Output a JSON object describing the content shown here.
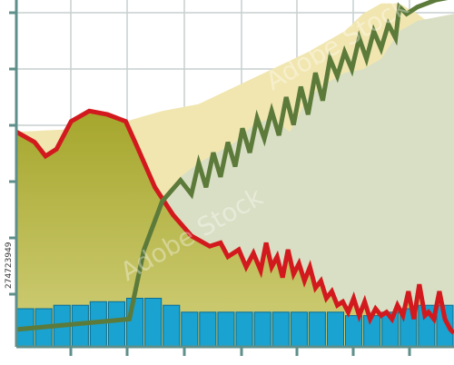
{
  "stock_id": "274723949",
  "watermark_text": "Adobe Stock",
  "colors": {
    "grid": "#5e8f8a",
    "olive_fill": "#a5a62c",
    "olive_fill_light": "#d1cf7a",
    "beige_area": "#f1e6b0",
    "sage_area": "#d9dfc4",
    "sky_area": "#cfe6f0",
    "red_line": "#d21a1e",
    "green_line": "#5c7a3a",
    "bar_fill": "#1aa2d0",
    "bar_stroke": "#0b6d93"
  },
  "chart_data": {
    "type": "area",
    "title": "",
    "xlabel": "",
    "ylabel": "",
    "xlim": [
      0,
      24
    ],
    "ylim": [
      0,
      10
    ],
    "grid": true,
    "legend": "none",
    "series": [
      {
        "kind": "area",
        "color": "#f1e6b0",
        "x": [
          0,
          4,
          6,
          8,
          10,
          12,
          14,
          16,
          18,
          19,
          20,
          21,
          22,
          23,
          24
        ],
        "y": [
          6.2,
          6.3,
          6.5,
          6.8,
          7.0,
          7.5,
          8.0,
          8.5,
          9.1,
          9.6,
          9.9,
          9.9,
          9.6,
          9.2,
          8.8
        ]
      },
      {
        "kind": "area",
        "color": "#cfe6f0",
        "x": [
          21,
          22,
          23,
          24
        ],
        "y": [
          9.0,
          9.3,
          9.4,
          9.5
        ]
      },
      {
        "kind": "area",
        "color": "#d9dfc4",
        "x": [
          6.2,
          7,
          8,
          9,
          10,
          11,
          12,
          13,
          14,
          15,
          16,
          17,
          18,
          19,
          20,
          21,
          22,
          23,
          24
        ],
        "y": [
          0.7,
          2.8,
          4.2,
          4.9,
          5.3,
          5.6,
          5.9,
          6.4,
          6.6,
          6.2,
          7.2,
          7.6,
          7.9,
          8.0,
          8.3,
          9.1,
          9.4,
          9.5,
          9.6
        ]
      },
      {
        "kind": "line",
        "color": "#d21a1e",
        "x": [
          0,
          1.0,
          1.6,
          2.2,
          3.0,
          4.0,
          5.0,
          6.0,
          6.6,
          7.6,
          8.6,
          9.6,
          10.6,
          11.2,
          11.6,
          12.2,
          12.6,
          13.0,
          13.4,
          13.7,
          14.0,
          14.3,
          14.6,
          14.9,
          15.2,
          15.5,
          15.8,
          16.1,
          16.4,
          16.7,
          17.0,
          17.3,
          17.6,
          17.9,
          18.2,
          18.5,
          18.8,
          19.1,
          19.4,
          19.7,
          20.0,
          20.3,
          20.6,
          20.9,
          21.2,
          21.5,
          21.8,
          22.1,
          22.4,
          22.6,
          22.9,
          23.2,
          23.5,
          23.8,
          24.0
        ],
        "y": [
          6.2,
          5.9,
          5.5,
          5.7,
          6.5,
          6.8,
          6.7,
          6.5,
          5.8,
          4.6,
          3.8,
          3.2,
          2.9,
          3.0,
          2.6,
          2.8,
          2.3,
          2.7,
          2.2,
          3.0,
          2.3,
          2.6,
          2.0,
          2.8,
          2.1,
          2.4,
          1.9,
          2.3,
          1.7,
          1.9,
          1.4,
          1.6,
          1.2,
          1.3,
          1.0,
          1.4,
          0.9,
          1.3,
          0.8,
          1.1,
          0.9,
          1.0,
          0.8,
          1.2,
          0.9,
          1.6,
          0.8,
          1.8,
          0.9,
          1.0,
          0.8,
          1.6,
          0.8,
          0.5,
          0.4
        ]
      },
      {
        "kind": "line",
        "color": "#5c7a3a",
        "x": [
          0,
          6.2,
          7,
          8,
          9,
          9.6,
          10.0,
          10.4,
          10.8,
          11.2,
          11.6,
          12.0,
          12.4,
          12.8,
          13.2,
          13.6,
          14.0,
          14.4,
          14.8,
          15.2,
          15.6,
          16.0,
          16.4,
          16.8,
          17.2,
          17.6,
          18.0,
          18.4,
          18.8,
          19.2,
          19.6,
          20.0,
          20.4,
          20.8,
          21.0,
          21.4,
          22.0,
          23.0,
          24.0
        ],
        "y": [
          0.5,
          0.8,
          2.8,
          4.2,
          4.8,
          4.4,
          5.3,
          4.6,
          5.6,
          4.9,
          5.9,
          5.2,
          6.3,
          5.6,
          6.6,
          6.0,
          6.8,
          6.1,
          7.2,
          6.4,
          7.5,
          6.7,
          7.9,
          7.1,
          8.3,
          7.8,
          8.5,
          8.0,
          8.9,
          8.3,
          9.1,
          8.6,
          9.3,
          8.9,
          9.8,
          9.6,
          9.8,
          10.0,
          10.1
        ]
      },
      {
        "kind": "bar",
        "color": "#1aa2d0",
        "values": [
          1.1,
          1.1,
          1.2,
          1.2,
          1.3,
          1.3,
          1.4,
          1.4,
          1.2,
          1.0,
          1.0,
          1.0,
          1.0,
          1.0,
          1.0,
          1.0,
          1.0,
          1.0,
          0.9,
          0.9,
          1.0,
          1.1,
          1.2,
          1.2
        ]
      }
    ]
  }
}
